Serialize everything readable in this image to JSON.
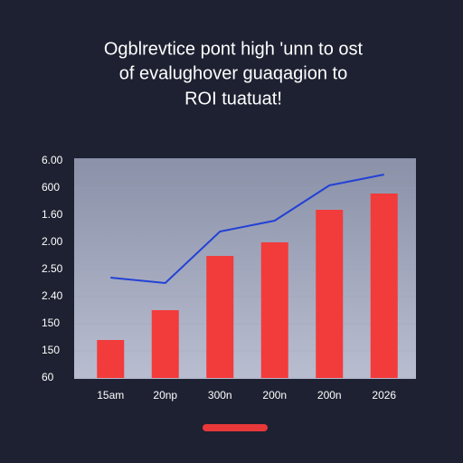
{
  "chart_data": {
    "type": "combo",
    "title_lines": [
      "Ogblrevtice pont high 'unn to ost",
      "of evalughover guaqagion to",
      "ROI tuatuat!"
    ],
    "categories": [
      "15am",
      "20np",
      "300n",
      "200n",
      "200n",
      "2026"
    ],
    "series": [
      {
        "type": "bar",
        "color": "#f23b3b",
        "values": [
          1.4,
          2.5,
          4.5,
          5.0,
          6.2,
          6.8
        ]
      },
      {
        "type": "line",
        "color": "#2341d6",
        "values": [
          3.7,
          3.5,
          5.4,
          5.8,
          7.1,
          7.5
        ]
      }
    ],
    "ylim": [
      0,
      8
    ],
    "yticks": [
      {
        "value": 0,
        "label": "60"
      },
      {
        "value": 1,
        "label": "150"
      },
      {
        "value": 2,
        "label": "150"
      },
      {
        "value": 3,
        "label": "2.40"
      },
      {
        "value": 4,
        "label": "2.50"
      },
      {
        "value": 5,
        "label": "2.00"
      },
      {
        "value": 6,
        "label": "1.60"
      },
      {
        "value": 7,
        "label": "600"
      },
      {
        "value": 8,
        "label": "6.00"
      }
    ]
  }
}
